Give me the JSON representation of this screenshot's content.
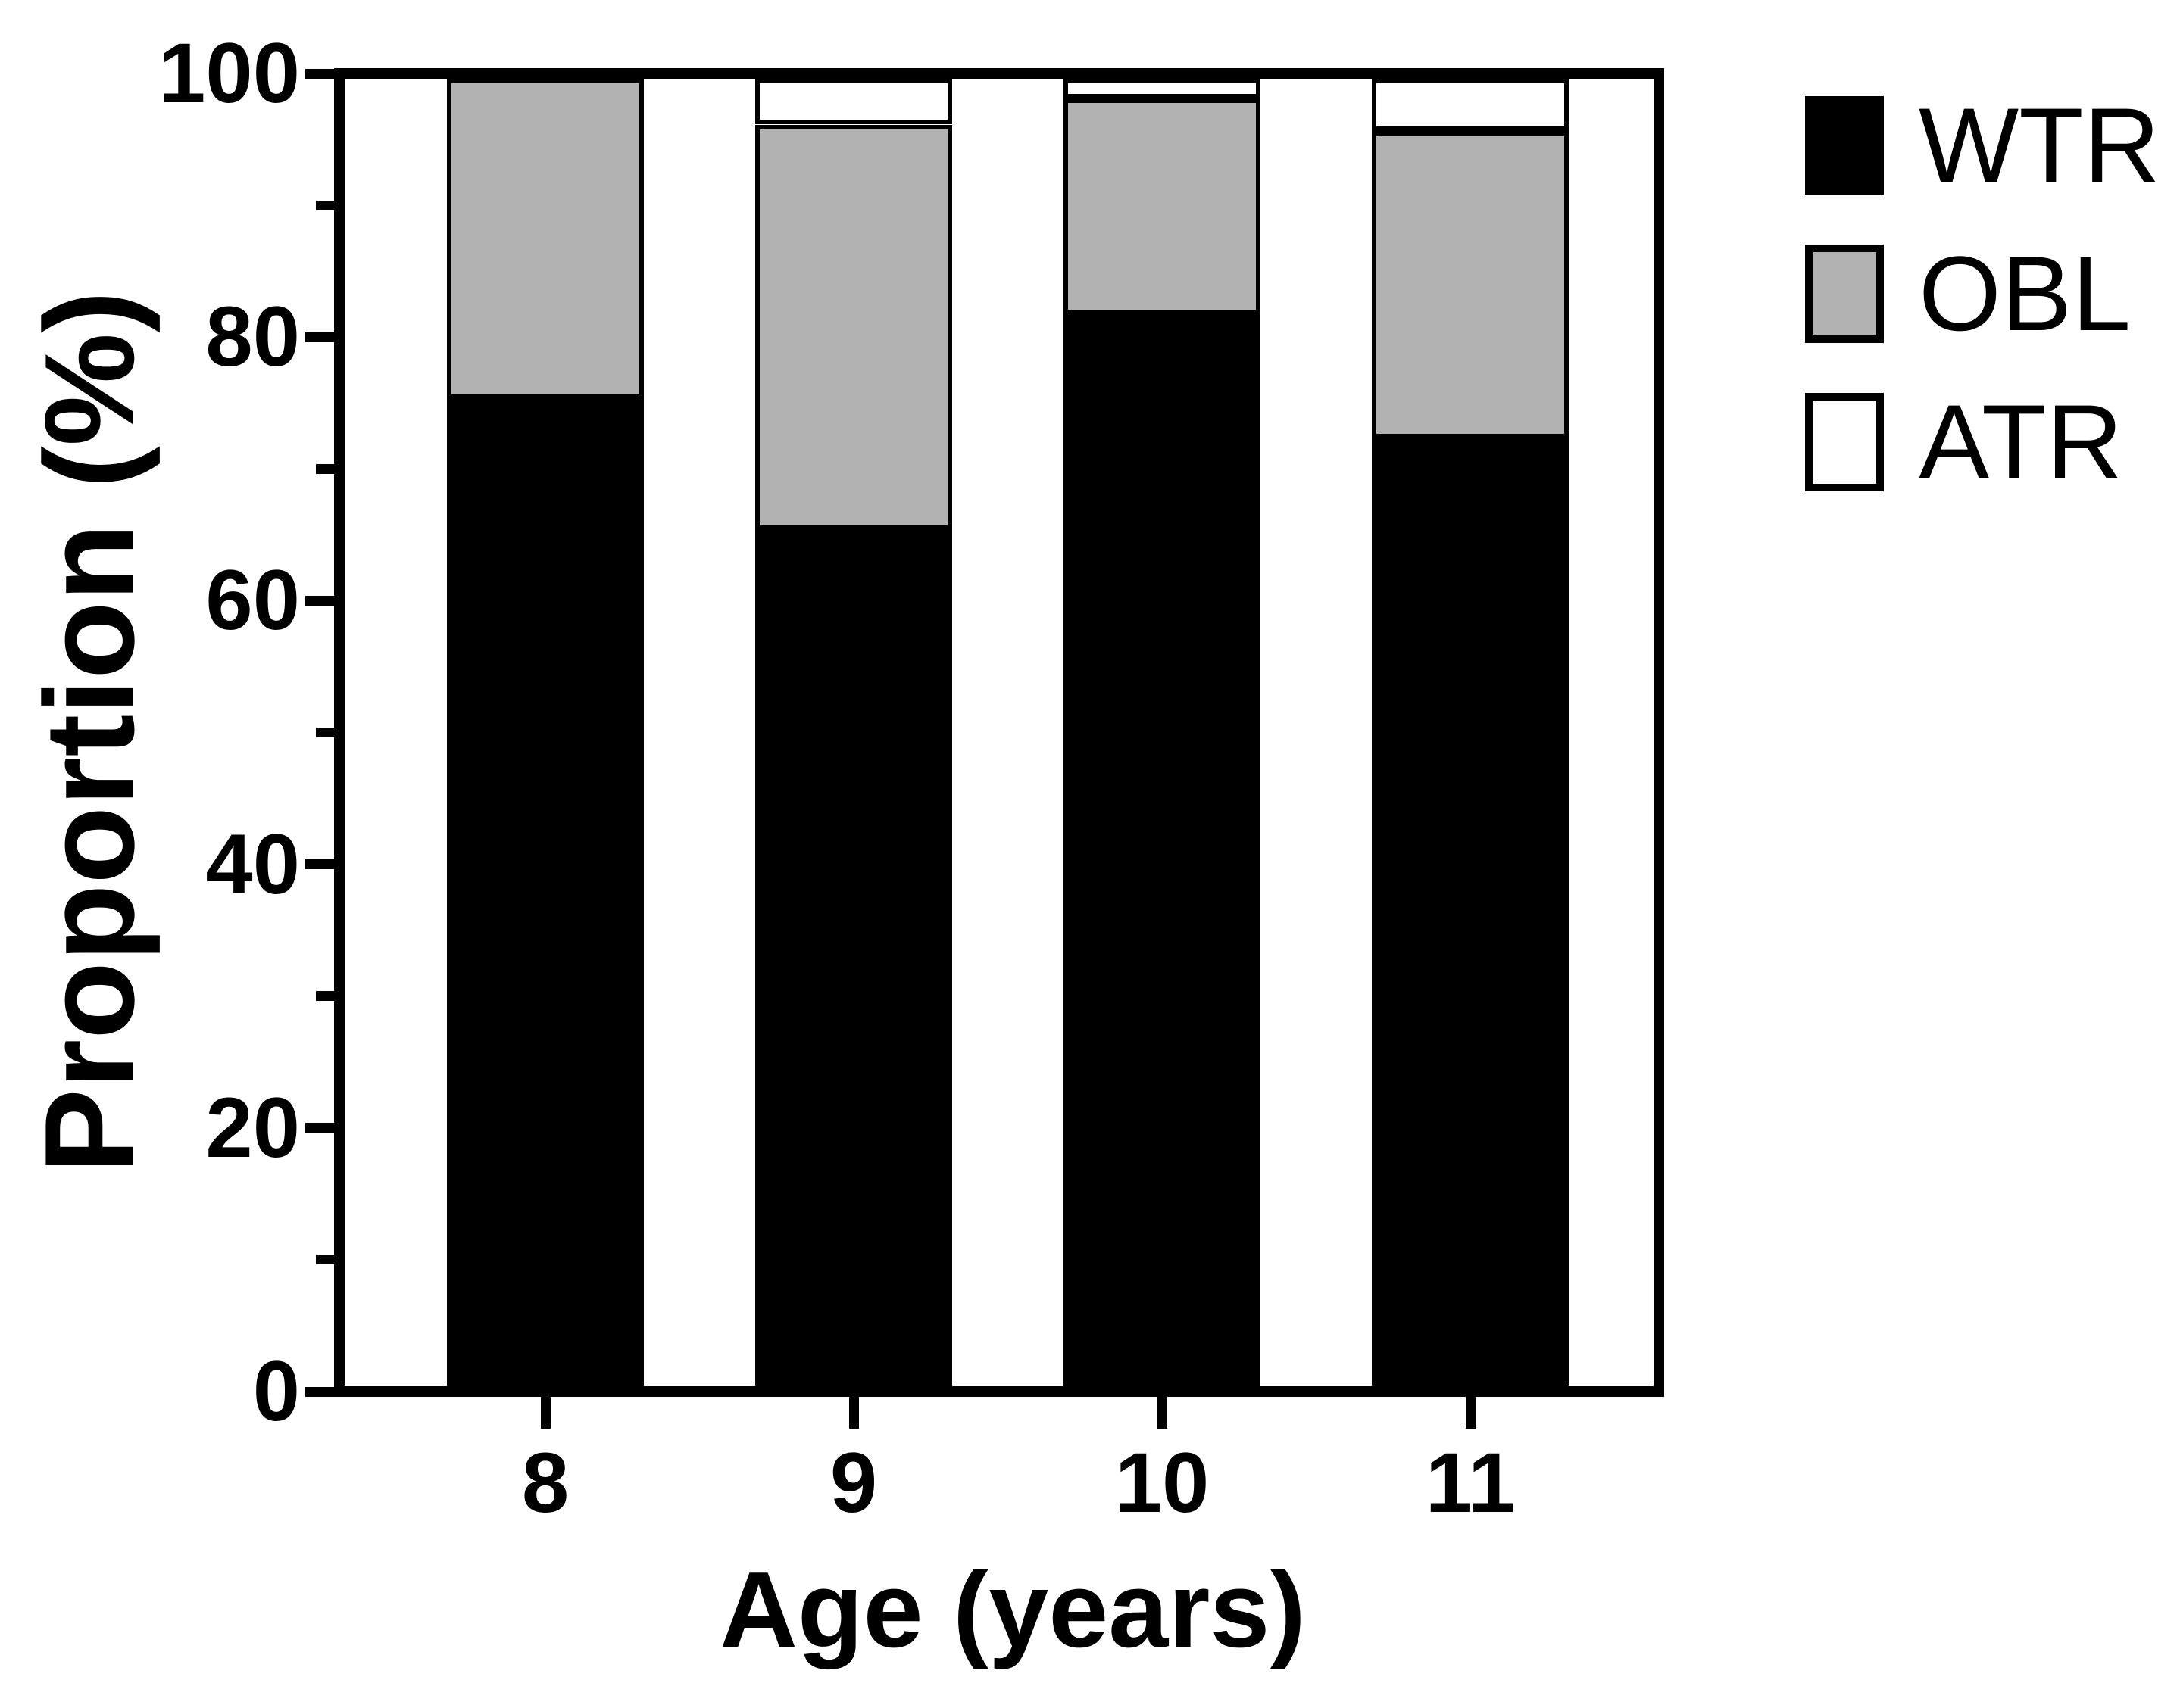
{
  "chart_data": {
    "type": "bar",
    "stacked": true,
    "title": "",
    "xlabel": "Age (years)",
    "ylabel": "Proportion (%)",
    "categories": [
      "8",
      "9",
      "10",
      "11"
    ],
    "series": [
      {
        "name": "WTR",
        "color": "#000000",
        "values": [
          75.5,
          65.5,
          82.0,
          72.5
        ]
      },
      {
        "name": "OBL",
        "color": "#b2b2b2",
        "values": [
          24.5,
          31.0,
          16.5,
          23.5
        ]
      },
      {
        "name": "ATR",
        "color": "#ffffff",
        "values": [
          0,
          3.5,
          1.5,
          4.0
        ]
      }
    ],
    "ylim": [
      0,
      100
    ],
    "yticks_major": [
      0,
      20,
      40,
      60,
      80,
      100
    ],
    "yticks_minor": [
      10,
      30,
      50,
      70,
      90
    ],
    "grid": false,
    "legend_position": "outside-top-right",
    "bar_outline_color": "#000000",
    "frame_color": "#000000",
    "background_color": "#ffffff"
  }
}
